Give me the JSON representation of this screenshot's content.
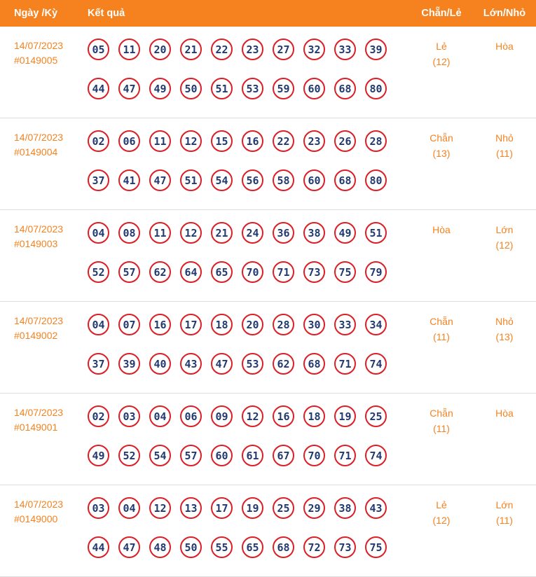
{
  "table": {
    "header": {
      "date_col": "Ngày /Kỳ",
      "result_col": "Kết quả",
      "even_odd_col": "Chẵn/Lẻ",
      "big_small_col": "Lớn/Nhỏ"
    },
    "rows": [
      {
        "date": "14/07/2023",
        "period": "#0149005",
        "numbers": [
          "05",
          "11",
          "20",
          "21",
          "22",
          "23",
          "27",
          "32",
          "33",
          "39",
          "44",
          "47",
          "49",
          "50",
          "51",
          "53",
          "59",
          "60",
          "68",
          "80"
        ],
        "even_odd_label": "Lẻ",
        "even_odd_count": "(12)",
        "big_small_label": "Hòa",
        "big_small_count": ""
      },
      {
        "date": "14/07/2023",
        "period": "#0149004",
        "numbers": [
          "02",
          "06",
          "11",
          "12",
          "15",
          "16",
          "22",
          "23",
          "26",
          "28",
          "37",
          "41",
          "47",
          "51",
          "54",
          "56",
          "58",
          "60",
          "68",
          "80"
        ],
        "even_odd_label": "Chẵn",
        "even_odd_count": "(13)",
        "big_small_label": "Nhỏ",
        "big_small_count": "(11)"
      },
      {
        "date": "14/07/2023",
        "period": "#0149003",
        "numbers": [
          "04",
          "08",
          "11",
          "12",
          "21",
          "24",
          "36",
          "38",
          "49",
          "51",
          "52",
          "57",
          "62",
          "64",
          "65",
          "70",
          "71",
          "73",
          "75",
          "79"
        ],
        "even_odd_label": "Hòa",
        "even_odd_count": "",
        "big_small_label": "Lớn",
        "big_small_count": "(12)"
      },
      {
        "date": "14/07/2023",
        "period": "#0149002",
        "numbers": [
          "04",
          "07",
          "16",
          "17",
          "18",
          "20",
          "28",
          "30",
          "33",
          "34",
          "37",
          "39",
          "40",
          "43",
          "47",
          "53",
          "62",
          "68",
          "71",
          "74"
        ],
        "even_odd_label": "Chẵn",
        "even_odd_count": "(11)",
        "big_small_label": "Nhỏ",
        "big_small_count": "(13)"
      },
      {
        "date": "14/07/2023",
        "period": "#0149001",
        "numbers": [
          "02",
          "03",
          "04",
          "06",
          "09",
          "12",
          "16",
          "18",
          "19",
          "25",
          "49",
          "52",
          "54",
          "57",
          "60",
          "61",
          "67",
          "70",
          "71",
          "74"
        ],
        "even_odd_label": "Chẵn",
        "even_odd_count": "(11)",
        "big_small_label": "Hòa",
        "big_small_count": ""
      },
      {
        "date": "14/07/2023",
        "period": "#0149000",
        "numbers": [
          "03",
          "04",
          "12",
          "13",
          "17",
          "19",
          "25",
          "29",
          "38",
          "43",
          "44",
          "47",
          "48",
          "50",
          "55",
          "65",
          "68",
          "72",
          "73",
          "75"
        ],
        "even_odd_label": "Lẻ",
        "even_odd_count": "(12)",
        "big_small_label": "Lớn",
        "big_small_count": "(11)"
      }
    ]
  },
  "colors": {
    "header_bg": "#F5821F",
    "orange_text": "#F5821F",
    "ball_border": "#DB1F26",
    "ball_text": "#223A70",
    "row_divider": "#DDDDDD"
  }
}
